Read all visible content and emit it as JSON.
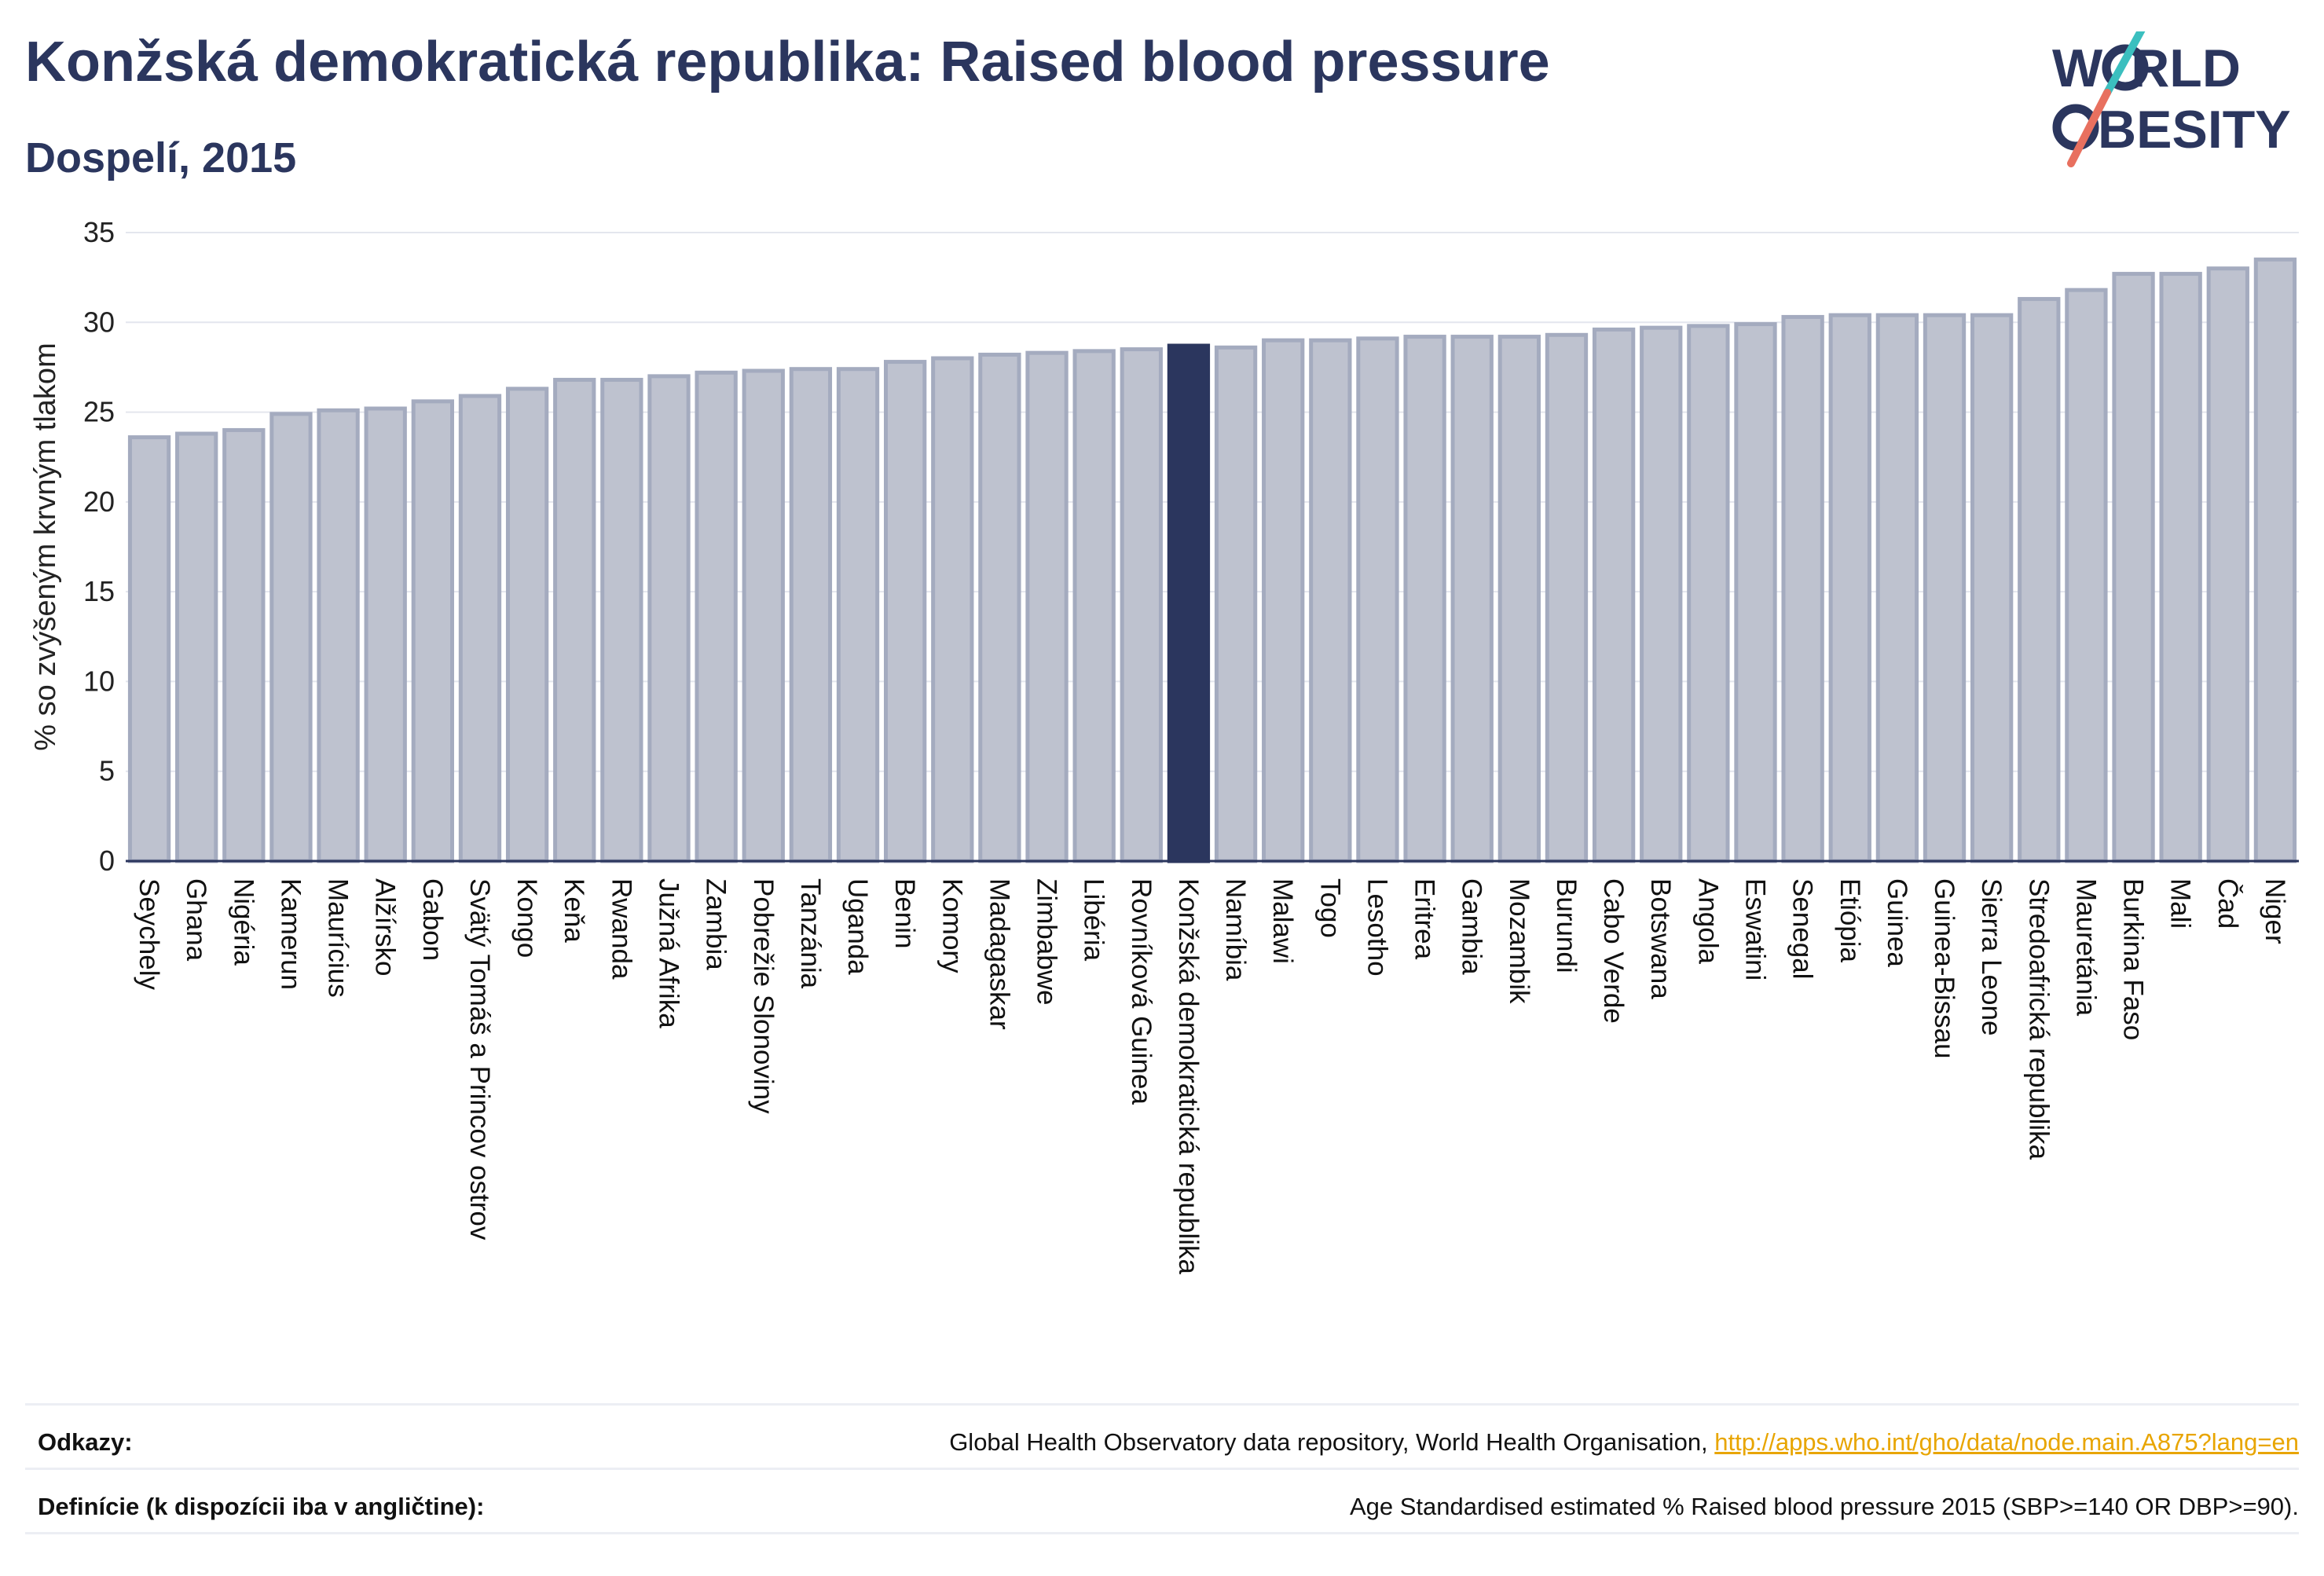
{
  "header": {
    "title": "Konžská demokratická republika: Raised blood pressure",
    "subtitle": "Dospelí, 2015",
    "logo_line1": "W",
    "logo_line1b": "RLD",
    "logo_line2": "BESITY"
  },
  "colors": {
    "bar_fill": "#bec2cf",
    "bar_stroke": "#a4abbf",
    "highlight": "#2b365e",
    "title": "#2b365e",
    "link": "#e8a500",
    "logo_teal": "#3bbfbf",
    "logo_coral": "#e8705f"
  },
  "chart_data": {
    "type": "bar",
    "title": "Konžská demokratická republika: Raised blood pressure",
    "subtitle": "Dospelí, 2015",
    "ylabel": "% so zvýšeným krvným tlakom",
    "xlabel": "",
    "ylim": [
      0,
      35
    ],
    "yticks": [
      0,
      5,
      10,
      15,
      20,
      25,
      30,
      35
    ],
    "grid": true,
    "highlight": "Konžská demokratická republika",
    "categories": [
      "Seychely",
      "Ghana",
      "Nigéria",
      "Kamerun",
      "Maurícius",
      "Alžírsko",
      "Gabon",
      "Svätý Tomáš a Princov ostrov",
      "Kongo",
      "Keňa",
      "Rwanda",
      "Južná Afrika",
      "Zambia",
      "Pobrežie Slonoviny",
      "Tanzánia",
      "Uganda",
      "Benin",
      "Komory",
      "Madagaskar",
      "Zimbabwe",
      "Libéria",
      "Rovníková Guinea",
      "Konžská demokratická republika",
      "Namíbia",
      "Malawi",
      "Togo",
      "Lesotho",
      "Eritrea",
      "Gambia",
      "Mozambik",
      "Burundi",
      "Cabo Verde",
      "Botswana",
      "Angola",
      "Eswatini",
      "Senegal",
      "Etiópia",
      "Guinea",
      "Guinea-Bissau",
      "Sierra Leone",
      "Stredoafrická republika",
      "Mauretánia",
      "Burkina Faso",
      "Mali",
      "Čad",
      "Niger"
    ],
    "values": [
      23.6,
      23.8,
      24.0,
      24.9,
      25.1,
      25.2,
      25.6,
      25.9,
      26.3,
      26.8,
      26.8,
      27.0,
      27.2,
      27.3,
      27.4,
      27.4,
      27.8,
      28.0,
      28.2,
      28.3,
      28.4,
      28.5,
      28.7,
      28.6,
      29.0,
      29.0,
      29.1,
      29.2,
      29.2,
      29.2,
      29.3,
      29.6,
      29.7,
      29.8,
      29.9,
      30.3,
      30.4,
      30.4,
      30.4,
      30.4,
      31.3,
      31.8,
      32.7,
      32.7,
      33.0,
      33.5
    ]
  },
  "footer": {
    "references_label": "Odkazy:",
    "references_text": "Global Health Observatory data repository, World Health Organisation, ",
    "references_link": "http://apps.who.int/gho/data/node.main.A875?lang=en",
    "definitions_label": "Definície (k dispozícii iba v angličtine):",
    "definitions_text": "Age Standardised estimated % Raised blood pressure 2015 (SBP>=140 OR DBP>=90)."
  }
}
